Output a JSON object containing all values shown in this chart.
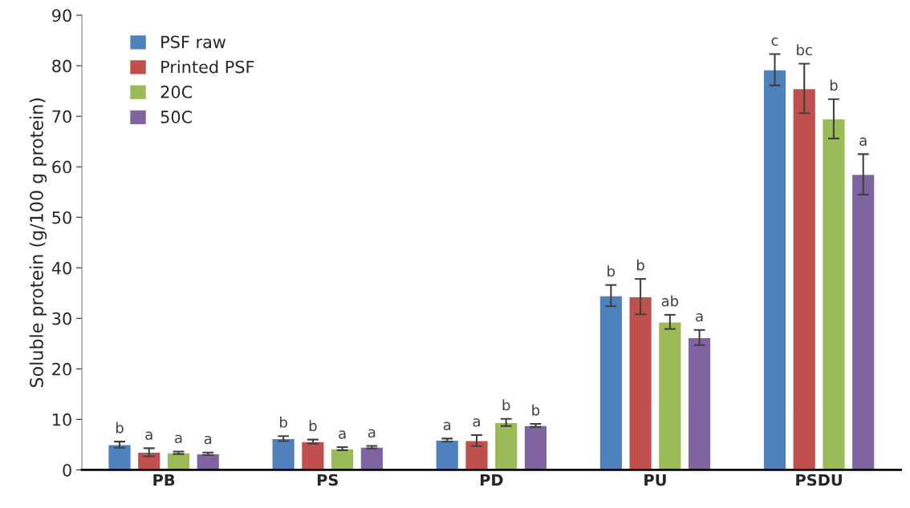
{
  "chart_data": {
    "type": "bar",
    "ylabel": "Soluble protein (g/100 g protein)",
    "categories": [
      "PB",
      "PS",
      "PD",
      "PU",
      "PSDU"
    ],
    "series": [
      {
        "name": "PSF raw",
        "color": "#4f81bd",
        "values": [
          5.0,
          6.2,
          5.9,
          34.5,
          79.2
        ],
        "errors": [
          0.6,
          0.5,
          0.3,
          2.1,
          3.1
        ],
        "value_labels": [
          "b",
          "b",
          "a",
          "b",
          "c"
        ]
      },
      {
        "name": "Printed PSF",
        "color": "#c0504d",
        "values": [
          3.5,
          5.6,
          5.8,
          34.3,
          75.5
        ],
        "errors": [
          0.8,
          0.4,
          1.1,
          3.5,
          4.9
        ],
        "value_labels": [
          "a",
          "b",
          "a",
          "b",
          "bc"
        ]
      },
      {
        "name": "20C",
        "color": "#9bbb59",
        "values": [
          3.4,
          4.2,
          9.4,
          29.3,
          69.5
        ],
        "errors": [
          0.25,
          0.3,
          0.7,
          1.4,
          3.9
        ],
        "value_labels": [
          "a",
          "a",
          "b",
          "ab",
          "b"
        ]
      },
      {
        "name": "50C",
        "color": "#8064a2",
        "values": [
          3.2,
          4.5,
          8.8,
          26.2,
          58.5
        ],
        "errors": [
          0.25,
          0.25,
          0.3,
          1.5,
          4.0
        ],
        "value_labels": [
          "a",
          "a",
          "b",
          "a",
          "a"
        ]
      }
    ],
    "ylim": [
      0,
      90
    ],
    "yticks": [
      0,
      10,
      20,
      30,
      40,
      50,
      60,
      70,
      80,
      90
    ],
    "grid": false,
    "legend": "top left"
  }
}
